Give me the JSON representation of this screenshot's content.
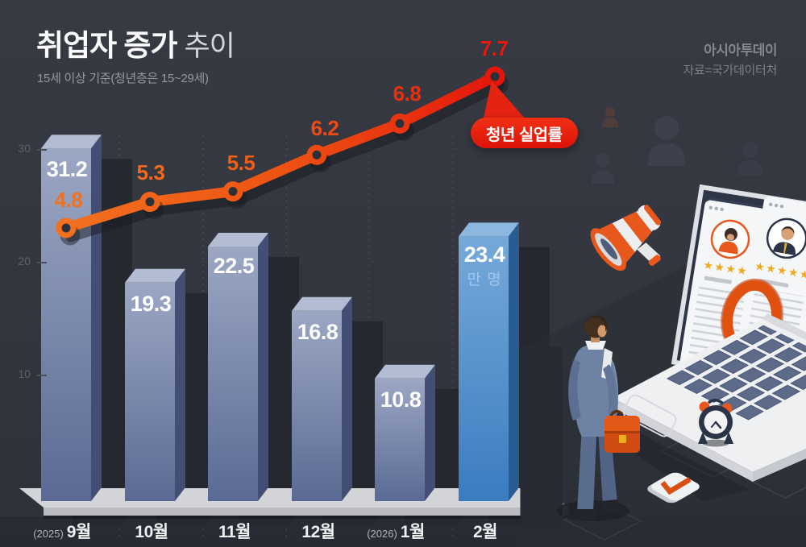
{
  "title": {
    "main": "취업자 증가",
    "sub": "추이"
  },
  "subtitle": "15세 이상 기준(청년층은 15~29세)",
  "source": {
    "brand": "아시아투데이",
    "credit": "자료=국가데이터처"
  },
  "chart_data": {
    "type": "bar",
    "categories": [
      "(2025) 9월",
      "10월",
      "11월",
      "12월",
      "(2026) 1월",
      "2월"
    ],
    "series": [
      {
        "name": "취업자 증가",
        "type": "bar",
        "unit": "만 명",
        "values": [
          31.2,
          19.3,
          22.5,
          16.8,
          10.8,
          23.4
        ],
        "highlight_index": 5
      },
      {
        "name": "청년 실업률",
        "type": "line",
        "values": [
          4.8,
          5.3,
          5.5,
          6.2,
          6.8,
          7.7
        ]
      }
    ],
    "yticks": [
      "30",
      "20",
      "10"
    ],
    "ylim": [
      0,
      33
    ],
    "annotation": "청년 실업률",
    "grid": "dashed",
    "legend_position": "none",
    "colors": {
      "bar": "#6f80a6",
      "bar_highlight": "#4a8ac8",
      "line_start": "#f2701f",
      "line_end": "#e3150b",
      "badge": "#e8200e"
    }
  },
  "months": [
    {
      "prefix": "(2025)",
      "label": "9월"
    },
    {
      "prefix": "",
      "label": "10월"
    },
    {
      "prefix": "",
      "label": "11월"
    },
    {
      "prefix": "",
      "label": "12월"
    },
    {
      "prefix": "(2026)",
      "label": "1월"
    },
    {
      "prefix": "",
      "label": "2월"
    }
  ],
  "illustration": {
    "resume_left_stars": "★★★★",
    "resume_right_stars": "★★★★★"
  }
}
